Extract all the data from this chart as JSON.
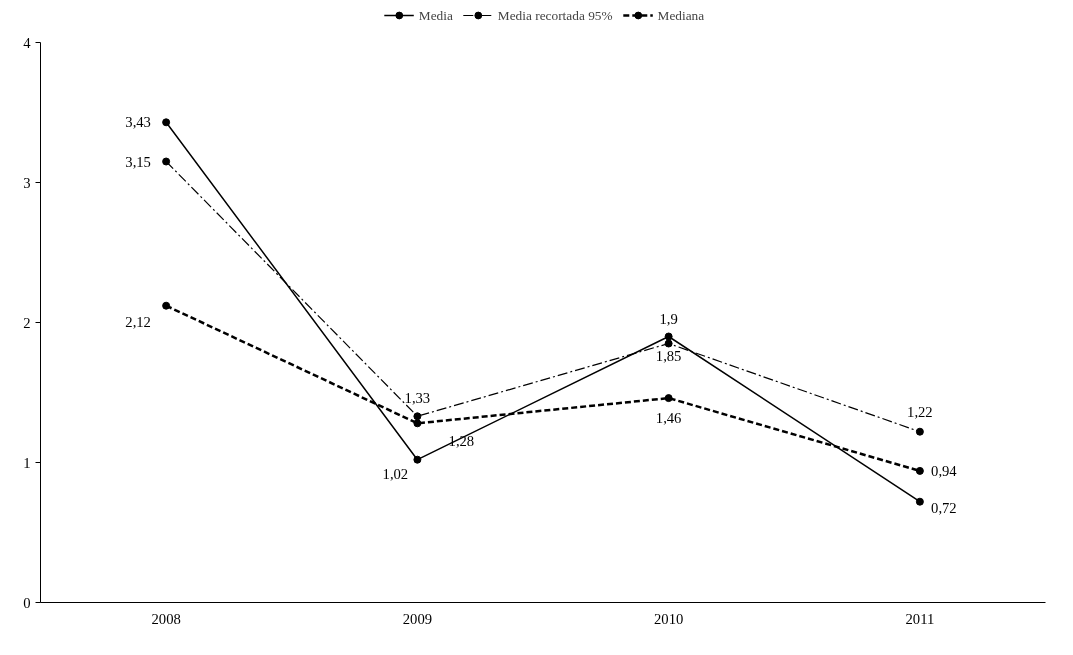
{
  "chart_data": {
    "type": "line",
    "categories": [
      "2008",
      "2009",
      "2010",
      "2011"
    ],
    "series": [
      {
        "name": "Media",
        "color": "#000000",
        "line_style": "solid",
        "values": [
          3.43,
          1.02,
          1.9,
          0.72
        ],
        "value_labels": [
          "3,43",
          "1,02",
          "1,9",
          "0,72"
        ]
      },
      {
        "name": "Media recortada 95%",
        "color": "#000000",
        "line_style": "dashdot",
        "values": [
          3.15,
          1.33,
          1.85,
          1.22
        ],
        "value_labels": [
          "3,15",
          "1,33",
          "1,85",
          "1,22"
        ]
      },
      {
        "name": "Mediana",
        "color": "#000000",
        "line_style": "dashed",
        "values": [
          2.12,
          1.28,
          1.46,
          0.94
        ],
        "value_labels": [
          "2,12",
          "1,28",
          "1,46",
          "0,94"
        ]
      }
    ],
    "ylim": [
      0,
      4
    ],
    "yticks": [
      0,
      1,
      2,
      3,
      4
    ],
    "grid": false,
    "legend": "top",
    "marker": "circle"
  }
}
